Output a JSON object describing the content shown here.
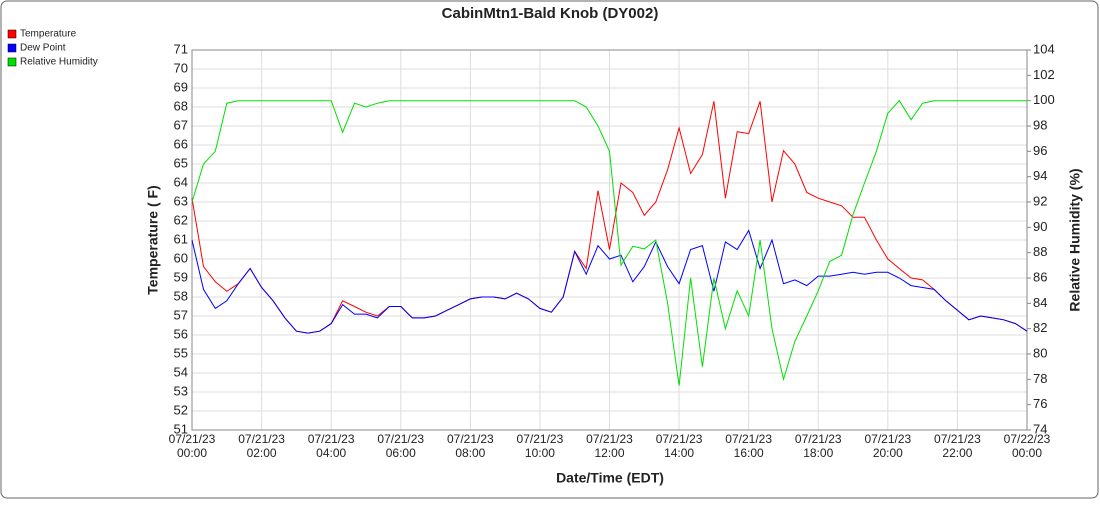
{
  "chart_data": {
    "type": "line",
    "title": "CabinMtn1-Bald Knob (DY002)",
    "x_label": "Date/Time (EDT)",
    "y_label": "Temperature ( F)",
    "y2_label": "Relative Humidity (%)",
    "x": [
      0,
      0.33,
      0.67,
      1,
      1.33,
      1.67,
      2,
      2.33,
      2.67,
      3,
      3.33,
      3.67,
      4,
      4.33,
      4.67,
      5,
      5.33,
      5.67,
      6,
      6.33,
      6.67,
      7,
      7.33,
      7.67,
      8,
      8.33,
      8.67,
      9,
      9.33,
      9.67,
      10,
      10.33,
      10.67,
      11,
      11.33,
      11.67,
      12,
      12.33,
      12.67,
      13,
      13.33,
      13.67,
      14,
      14.33,
      14.67,
      15,
      15.33,
      15.67,
      16,
      16.33,
      16.67,
      17,
      17.33,
      17.67,
      18,
      18.33,
      18.67,
      19,
      19.33,
      19.67,
      20,
      20.33,
      20.67,
      21,
      21.33,
      21.67,
      22,
      22.33,
      22.67,
      23,
      23.33,
      23.67,
      24
    ],
    "series": [
      {
        "name": "Temperature",
        "color": "#ff0000",
        "values": [
          63.2,
          59.6,
          58.8,
          58.3,
          58.7,
          59.5,
          58.5,
          57.8,
          56.9,
          56.2,
          56.1,
          56.2,
          56.6,
          57.8,
          57.5,
          57.2,
          57,
          57.5,
          57.5,
          56.9,
          56.9,
          57,
          57.3,
          57.6,
          57.9,
          58,
          58,
          57.9,
          58.2,
          57.9,
          57.4,
          57.2,
          58,
          60.4,
          59.5,
          63.6,
          60.5,
          64,
          63.5,
          62.3,
          63,
          64.7,
          66.9,
          64.5,
          65.5,
          68.3,
          63.2,
          66.7,
          66.6,
          68.3,
          63,
          65.7,
          65,
          63.5,
          63.2,
          63,
          62.8,
          62.2,
          62.2,
          61,
          60,
          59.5,
          59,
          58.9,
          58.4,
          57.8,
          57.3,
          56.8,
          57,
          56.9,
          56.8,
          56.6,
          56.2
        ]
      },
      {
        "name": "Dew Point",
        "color": "#0000ff",
        "values": [
          61,
          58.4,
          57.4,
          57.8,
          58.7,
          59.5,
          58.5,
          57.8,
          56.9,
          56.2,
          56.1,
          56.2,
          56.6,
          57.6,
          57.1,
          57.1,
          56.9,
          57.5,
          57.5,
          56.9,
          56.9,
          57,
          57.3,
          57.6,
          57.9,
          58,
          58,
          57.9,
          58.2,
          57.9,
          57.4,
          57.2,
          58,
          60.4,
          59.2,
          60.7,
          60,
          60.2,
          58.8,
          59.6,
          60.9,
          59.6,
          58.7,
          60.5,
          60.7,
          58.3,
          60.9,
          60.5,
          61.5,
          59.5,
          61,
          58.7,
          58.9,
          58.6,
          59.1,
          59.1,
          59.2,
          59.3,
          59.2,
          59.3,
          59.3,
          59,
          58.6,
          58.5,
          58.4,
          57.8,
          57.3,
          56.8,
          57,
          56.9,
          56.8,
          56.6,
          56.2
        ]
      },
      {
        "name": "Relative Humidity",
        "color": "#00e000",
        "axis": "y2",
        "values": [
          92,
          95,
          96,
          99.8,
          100,
          100,
          100,
          100,
          100,
          100,
          100,
          100,
          100,
          97.5,
          99.8,
          99.5,
          99.8,
          100,
          100,
          100,
          100,
          100,
          100,
          100,
          100,
          100,
          100,
          100,
          100,
          100,
          100,
          100,
          100,
          100,
          99.5,
          98,
          96,
          87,
          88.5,
          88.3,
          89,
          84,
          77.5,
          86,
          79,
          86,
          82,
          85,
          83,
          89,
          82,
          78,
          81,
          83,
          85,
          87.3,
          87.8,
          91,
          93.5,
          96,
          99,
          100,
          98.5,
          99.8,
          100,
          100,
          100,
          100,
          100,
          100,
          100,
          100,
          100
        ]
      }
    ],
    "xlim": [
      0,
      24
    ],
    "xticks": [
      {
        "value": 0,
        "label": "07/21/23 00:00"
      },
      {
        "value": 2,
        "label": "07/21/23 02:00"
      },
      {
        "value": 4,
        "label": "07/21/23 04:00"
      },
      {
        "value": 6,
        "label": "07/21/23 06:00"
      },
      {
        "value": 8,
        "label": "07/21/23 08:00"
      },
      {
        "value": 10,
        "label": "07/21/23 10:00"
      },
      {
        "value": 12,
        "label": "07/21/23 12:00"
      },
      {
        "value": 14,
        "label": "07/21/23 14:00"
      },
      {
        "value": 16,
        "label": "07/21/23 16:00"
      },
      {
        "value": 18,
        "label": "07/21/23 18:00"
      },
      {
        "value": 20,
        "label": "07/21/23 20:00"
      },
      {
        "value": 22,
        "label": "07/21/23 22:00"
      },
      {
        "value": 24,
        "label": "07/22/23 00:00"
      }
    ],
    "ylim": [
      51,
      71
    ],
    "yticks": [
      51,
      52,
      53,
      54,
      55,
      56,
      57,
      58,
      59,
      60,
      61,
      62,
      63,
      64,
      65,
      66,
      67,
      68,
      69,
      70,
      71
    ],
    "y2lim": [
      74,
      104
    ],
    "y2ticks": [
      74,
      76,
      78,
      80,
      82,
      84,
      86,
      88,
      90,
      92,
      94,
      96,
      98,
      100,
      102,
      104
    ],
    "grid": true,
    "legend": "top-left"
  }
}
